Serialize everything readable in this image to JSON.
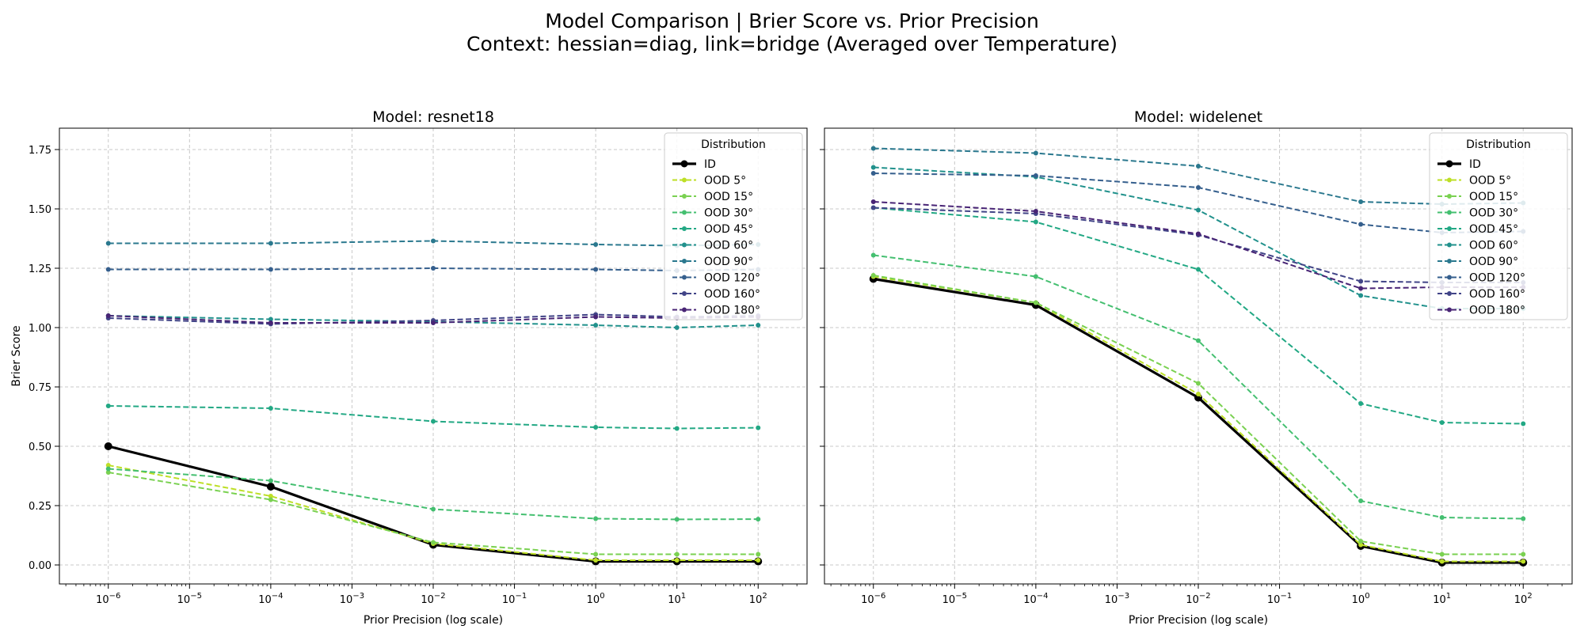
{
  "figure": {
    "title_line1": "Model Comparison | Brier Score vs. Prior Precision",
    "title_line2": "Context: hessian=diag, link=bridge (Averaged over Temperature)"
  },
  "chart_data": [
    {
      "type": "line",
      "title": "Model: resnet18",
      "xlabel": "Prior Precision (log scale)",
      "ylabel": "Brier Score",
      "xscale": "log",
      "xlim": [
        2.5e-07,
        400
      ],
      "ylim": [
        -0.08,
        1.84
      ],
      "xticks": [
        1e-06,
        1e-05,
        0.0001,
        0.001,
        0.01,
        0.1,
        1,
        10,
        100
      ],
      "xtick_labels": [
        "10^-6",
        "10^-5",
        "10^-4",
        "10^-3",
        "10^-2",
        "10^-1",
        "10^0",
        "10^1",
        "10^2"
      ],
      "yticks": [
        0.0,
        0.25,
        0.5,
        0.75,
        1.0,
        1.25,
        1.5,
        1.75
      ],
      "ytick_labels": [
        "0.00",
        "0.25",
        "0.50",
        "0.75",
        "1.00",
        "1.25",
        "1.50",
        "1.75"
      ],
      "grid": true,
      "legend": {
        "title": "Distribution",
        "placement": "top-right"
      },
      "x": [
        1e-06,
        0.0001,
        0.01,
        1,
        10,
        100
      ],
      "series": [
        {
          "name": "ID",
          "color": "#000000",
          "style": "solid",
          "values": [
            0.5,
            0.33,
            0.085,
            0.015,
            0.015,
            0.015
          ]
        },
        {
          "name": "OOD 5°",
          "color": "#bddf26",
          "style": "dashed",
          "values": [
            0.42,
            0.29,
            0.09,
            0.02,
            0.02,
            0.02
          ]
        },
        {
          "name": "OOD 15°",
          "color": "#7ad151",
          "style": "dashed",
          "values": [
            0.39,
            0.275,
            0.095,
            0.045,
            0.045,
            0.045
          ]
        },
        {
          "name": "OOD 30°",
          "color": "#44bf70",
          "style": "dashed",
          "values": [
            0.405,
            0.355,
            0.235,
            0.195,
            0.192,
            0.193
          ]
        },
        {
          "name": "OOD 45°",
          "color": "#22a884",
          "style": "dashed",
          "values": [
            0.67,
            0.66,
            0.605,
            0.58,
            0.575,
            0.578
          ]
        },
        {
          "name": "OOD 60°",
          "color": "#21918c",
          "style": "dashed",
          "values": [
            1.05,
            1.035,
            1.025,
            1.01,
            1.0,
            1.01
          ]
        },
        {
          "name": "OOD 90°",
          "color": "#2a788e",
          "style": "dashed",
          "values": [
            1.355,
            1.355,
            1.365,
            1.35,
            1.345,
            1.35
          ]
        },
        {
          "name": "OOD 120°",
          "color": "#355f8d",
          "style": "dashed",
          "values": [
            1.245,
            1.245,
            1.25,
            1.245,
            1.24,
            1.245
          ]
        },
        {
          "name": "OOD 160°",
          "color": "#414487",
          "style": "dashed",
          "values": [
            1.04,
            1.015,
            1.03,
            1.055,
            1.045,
            1.05
          ]
        },
        {
          "name": "OOD 180°",
          "color": "#482475",
          "style": "dashed",
          "values": [
            1.05,
            1.02,
            1.02,
            1.045,
            1.04,
            1.045
          ]
        }
      ]
    },
    {
      "type": "line",
      "title": "Model: widelenet",
      "xlabel": "Prior Precision (log scale)",
      "ylabel": "",
      "xscale": "log",
      "xlim": [
        2.5e-07,
        400
      ],
      "ylim": [
        -0.08,
        1.84
      ],
      "xticks": [
        1e-06,
        1e-05,
        0.0001,
        0.001,
        0.01,
        0.1,
        1,
        10,
        100
      ],
      "xtick_labels": [
        "10^-6",
        "10^-5",
        "10^-4",
        "10^-3",
        "10^-2",
        "10^-1",
        "10^0",
        "10^1",
        "10^2"
      ],
      "yticks": [
        0.0,
        0.25,
        0.5,
        0.75,
        1.0,
        1.25,
        1.5,
        1.75
      ],
      "ytick_labels": [],
      "grid": true,
      "legend": {
        "title": "Distribution",
        "placement": "top-right"
      },
      "x": [
        1e-06,
        0.0001,
        0.01,
        1,
        10,
        100
      ],
      "series": [
        {
          "name": "ID",
          "color": "#000000",
          "style": "solid",
          "values": [
            1.205,
            1.095,
            0.705,
            0.08,
            0.01,
            0.01
          ]
        },
        {
          "name": "OOD 5°",
          "color": "#bddf26",
          "style": "dashed",
          "values": [
            1.215,
            1.105,
            0.72,
            0.085,
            0.015,
            0.015
          ]
        },
        {
          "name": "OOD 15°",
          "color": "#7ad151",
          "style": "dashed",
          "values": [
            1.22,
            1.105,
            0.765,
            0.1,
            0.045,
            0.045
          ]
        },
        {
          "name": "OOD 30°",
          "color": "#44bf70",
          "style": "dashed",
          "values": [
            1.305,
            1.215,
            0.945,
            0.27,
            0.2,
            0.195
          ]
        },
        {
          "name": "OOD 45°",
          "color": "#22a884",
          "style": "dashed",
          "values": [
            1.505,
            1.445,
            1.245,
            0.68,
            0.6,
            0.595
          ]
        },
        {
          "name": "OOD 60°",
          "color": "#21918c",
          "style": "dashed",
          "values": [
            1.675,
            1.635,
            1.495,
            1.135,
            1.08,
            1.08
          ]
        },
        {
          "name": "OOD 90°",
          "color": "#2a788e",
          "style": "dashed",
          "values": [
            1.755,
            1.735,
            1.68,
            1.53,
            1.52,
            1.525
          ]
        },
        {
          "name": "OOD 120°",
          "color": "#355f8d",
          "style": "dashed",
          "values": [
            1.65,
            1.64,
            1.59,
            1.435,
            1.4,
            1.405
          ]
        },
        {
          "name": "OOD 160°",
          "color": "#414487",
          "style": "dashed",
          "values": [
            1.505,
            1.48,
            1.39,
            1.195,
            1.19,
            1.19
          ]
        },
        {
          "name": "OOD 180°",
          "color": "#482475",
          "style": "dashed",
          "values": [
            1.53,
            1.49,
            1.395,
            1.165,
            1.17,
            1.17
          ]
        }
      ]
    }
  ]
}
